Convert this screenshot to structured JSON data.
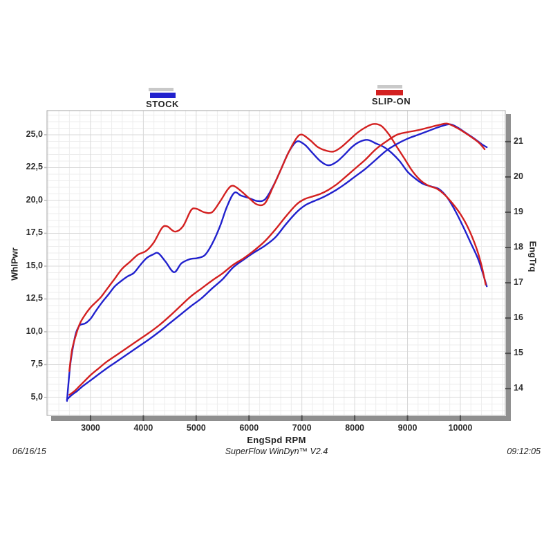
{
  "legend": {
    "stock": {
      "label": "STOCK",
      "color": "#2121cd",
      "shadow_color": "#c9c9c9"
    },
    "slip_on": {
      "label": "SLIP-ON",
      "color": "#d32020",
      "shadow_color": "#c9c9c9"
    }
  },
  "axis_titles": {
    "left": "WhlPwr",
    "right": "EngTrq",
    "bottom": "EngSpd  RPM"
  },
  "footer": {
    "date": "06/16/15",
    "center": "SuperFlow WinDyn™ V2.4",
    "time": "09:12:05"
  },
  "colors": {
    "grid_minor": "#ededed",
    "grid_major": "#d8d8d8",
    "plot_border": "#a6a6a6",
    "plot_shadow": "#8f8f8f",
    "tick_dark": "#4d4d4d",
    "tick_light": "#b8b8b8"
  },
  "chart_data": {
    "type": "line",
    "title": "",
    "grid": true,
    "legend_position": "top",
    "xlabel": "EngSpd  RPM",
    "x_axis": {
      "min": 2176,
      "max": 10851,
      "minor_step": 200,
      "major_ticks": [
        {
          "value": 3000,
          "label": "3000"
        },
        {
          "value": 4000,
          "label": "4000"
        },
        {
          "value": 5000,
          "label": "5000"
        },
        {
          "value": 6000,
          "label": "6000"
        },
        {
          "value": 7000,
          "label": "7000"
        },
        {
          "value": 8000,
          "label": "8000"
        },
        {
          "value": 9000,
          "label": "9000"
        },
        {
          "value": 10000,
          "label": "10000"
        }
      ]
    },
    "left_axis": {
      "label": "WhlPwr",
      "min": 3.63,
      "max": 26.84,
      "minor_step": 0.5,
      "ticks": [
        {
          "value": 25.0,
          "label": "25,0"
        },
        {
          "value": 22.5,
          "label": "22,5"
        },
        {
          "value": 20.0,
          "label": "20,0"
        },
        {
          "value": 17.5,
          "label": "17,5"
        },
        {
          "value": 15.0,
          "label": "15,0"
        },
        {
          "value": 12.5,
          "label": "12,5"
        },
        {
          "value": 10.0,
          "label": "10,0"
        },
        {
          "value": 7.5,
          "label": "7,5"
        },
        {
          "value": 5.0,
          "label": "5,0"
        }
      ]
    },
    "right_axis": {
      "label": "EngTrq",
      "min": 13.24,
      "max": 21.88,
      "ticks": [
        {
          "value": 21,
          "label": "21"
        },
        {
          "value": 20,
          "label": "20"
        },
        {
          "value": 19,
          "label": "19"
        },
        {
          "value": 18,
          "label": "18"
        },
        {
          "value": 17,
          "label": "17"
        },
        {
          "value": 16,
          "label": "16"
        },
        {
          "value": 15,
          "label": "15"
        },
        {
          "value": 14,
          "label": "14"
        }
      ]
    },
    "series": [
      {
        "name": "STOCK EngTrq",
        "run": "STOCK",
        "axis": "right",
        "color": "#2121cd",
        "points": [
          [
            2554,
            13.65
          ],
          [
            2610,
            14.6
          ],
          [
            2670,
            15.2
          ],
          [
            2730,
            15.6
          ],
          [
            2800,
            15.8
          ],
          [
            2900,
            15.85
          ],
          [
            3000,
            15.98
          ],
          [
            3100,
            16.2
          ],
          [
            3220,
            16.45
          ],
          [
            3340,
            16.67
          ],
          [
            3460,
            16.9
          ],
          [
            3580,
            17.05
          ],
          [
            3700,
            17.18
          ],
          [
            3820,
            17.28
          ],
          [
            3940,
            17.5
          ],
          [
            4060,
            17.7
          ],
          [
            4180,
            17.8
          ],
          [
            4280,
            17.84
          ],
          [
            4420,
            17.6
          ],
          [
            4580,
            17.3
          ],
          [
            4720,
            17.55
          ],
          [
            4880,
            17.67
          ],
          [
            5020,
            17.7
          ],
          [
            5160,
            17.78
          ],
          [
            5300,
            18.1
          ],
          [
            5450,
            18.6
          ],
          [
            5580,
            19.15
          ],
          [
            5720,
            19.55
          ],
          [
            5850,
            19.47
          ],
          [
            6000,
            19.4
          ],
          [
            6150,
            19.32
          ],
          [
            6300,
            19.36
          ],
          [
            6450,
            19.72
          ],
          [
            6600,
            20.2
          ],
          [
            6750,
            20.7
          ],
          [
            6900,
            21.0
          ],
          [
            7050,
            20.92
          ],
          [
            7200,
            20.68
          ],
          [
            7350,
            20.45
          ],
          [
            7500,
            20.33
          ],
          [
            7650,
            20.42
          ],
          [
            7800,
            20.62
          ],
          [
            7950,
            20.85
          ],
          [
            8100,
            21.0
          ],
          [
            8250,
            21.05
          ],
          [
            8400,
            20.95
          ],
          [
            8550,
            20.85
          ],
          [
            8700,
            20.68
          ],
          [
            8850,
            20.45
          ],
          [
            9000,
            20.15
          ],
          [
            9150,
            19.95
          ],
          [
            9300,
            19.8
          ],
          [
            9450,
            19.73
          ],
          [
            9600,
            19.65
          ],
          [
            9750,
            19.42
          ],
          [
            9900,
            19.05
          ],
          [
            10050,
            18.6
          ],
          [
            10200,
            18.12
          ],
          [
            10350,
            17.62
          ],
          [
            10500,
            16.9
          ]
        ]
      },
      {
        "name": "SLIP-ON EngTrq",
        "run": "SLIP-ON",
        "axis": "right",
        "color": "#d32020",
        "points": [
          [
            2598,
            14.5
          ],
          [
            2650,
            15.1
          ],
          [
            2720,
            15.5
          ],
          [
            2800,
            15.85
          ],
          [
            2900,
            16.1
          ],
          [
            3000,
            16.3
          ],
          [
            3100,
            16.45
          ],
          [
            3200,
            16.6
          ],
          [
            3300,
            16.8
          ],
          [
            3450,
            17.1
          ],
          [
            3600,
            17.4
          ],
          [
            3750,
            17.6
          ],
          [
            3900,
            17.8
          ],
          [
            4050,
            17.9
          ],
          [
            4200,
            18.15
          ],
          [
            4350,
            18.55
          ],
          [
            4450,
            18.6
          ],
          [
            4600,
            18.45
          ],
          [
            4750,
            18.6
          ],
          [
            4900,
            19.05
          ],
          [
            5000,
            19.1
          ],
          [
            5150,
            19.0
          ],
          [
            5300,
            19.0
          ],
          [
            5450,
            19.3
          ],
          [
            5600,
            19.65
          ],
          [
            5700,
            19.75
          ],
          [
            5850,
            19.6
          ],
          [
            6000,
            19.4
          ],
          [
            6150,
            19.22
          ],
          [
            6300,
            19.25
          ],
          [
            6450,
            19.7
          ],
          [
            6600,
            20.2
          ],
          [
            6750,
            20.7
          ],
          [
            6900,
            21.1
          ],
          [
            7000,
            21.2
          ],
          [
            7150,
            21.05
          ],
          [
            7300,
            20.85
          ],
          [
            7450,
            20.75
          ],
          [
            7600,
            20.72
          ],
          [
            7750,
            20.85
          ],
          [
            7900,
            21.05
          ],
          [
            8050,
            21.25
          ],
          [
            8200,
            21.4
          ],
          [
            8350,
            21.5
          ],
          [
            8500,
            21.45
          ],
          [
            8650,
            21.2
          ],
          [
            8800,
            20.85
          ],
          [
            8950,
            20.5
          ],
          [
            9100,
            20.15
          ],
          [
            9250,
            19.9
          ],
          [
            9400,
            19.75
          ],
          [
            9550,
            19.67
          ],
          [
            9700,
            19.5
          ],
          [
            9850,
            19.25
          ],
          [
            10000,
            18.95
          ],
          [
            10150,
            18.55
          ],
          [
            10300,
            18.0
          ],
          [
            10400,
            17.5
          ],
          [
            10480,
            16.95
          ]
        ]
      },
      {
        "name": "STOCK WhlPwr",
        "run": "STOCK",
        "axis": "left",
        "color": "#2121cd",
        "points": [
          [
            2554,
            4.85
          ],
          [
            2650,
            5.2
          ],
          [
            2750,
            5.5
          ],
          [
            2850,
            5.85
          ],
          [
            3000,
            6.3
          ],
          [
            3150,
            6.75
          ],
          [
            3300,
            7.2
          ],
          [
            3500,
            7.75
          ],
          [
            3700,
            8.3
          ],
          [
            3900,
            8.85
          ],
          [
            4100,
            9.4
          ],
          [
            4300,
            10.0
          ],
          [
            4500,
            10.65
          ],
          [
            4700,
            11.3
          ],
          [
            4900,
            11.95
          ],
          [
            5100,
            12.55
          ],
          [
            5300,
            13.3
          ],
          [
            5500,
            14.0
          ],
          [
            5700,
            14.9
          ],
          [
            5900,
            15.5
          ],
          [
            6100,
            16.05
          ],
          [
            6300,
            16.55
          ],
          [
            6500,
            17.2
          ],
          [
            6700,
            18.2
          ],
          [
            6900,
            19.1
          ],
          [
            7050,
            19.6
          ],
          [
            7200,
            19.9
          ],
          [
            7350,
            20.15
          ],
          [
            7500,
            20.45
          ],
          [
            7650,
            20.8
          ],
          [
            7800,
            21.2
          ],
          [
            8000,
            21.8
          ],
          [
            8200,
            22.4
          ],
          [
            8400,
            23.1
          ],
          [
            8600,
            23.8
          ],
          [
            8800,
            24.3
          ],
          [
            9000,
            24.7
          ],
          [
            9200,
            25.0
          ],
          [
            9400,
            25.3
          ],
          [
            9600,
            25.6
          ],
          [
            9800,
            25.8
          ],
          [
            9950,
            25.55
          ],
          [
            10100,
            25.15
          ],
          [
            10250,
            24.75
          ],
          [
            10400,
            24.3
          ],
          [
            10500,
            24.05
          ]
        ]
      },
      {
        "name": "SLIP-ON WhlPwr",
        "run": "SLIP-ON",
        "axis": "left",
        "color": "#d32020",
        "points": [
          [
            2600,
            5.2
          ],
          [
            2700,
            5.5
          ],
          [
            2800,
            5.9
          ],
          [
            2900,
            6.3
          ],
          [
            3000,
            6.7
          ],
          [
            3150,
            7.2
          ],
          [
            3300,
            7.7
          ],
          [
            3500,
            8.25
          ],
          [
            3700,
            8.8
          ],
          [
            3900,
            9.35
          ],
          [
            4100,
            9.9
          ],
          [
            4300,
            10.5
          ],
          [
            4500,
            11.2
          ],
          [
            4700,
            11.95
          ],
          [
            4900,
            12.7
          ],
          [
            5100,
            13.3
          ],
          [
            5300,
            13.9
          ],
          [
            5500,
            14.45
          ],
          [
            5700,
            15.1
          ],
          [
            5900,
            15.6
          ],
          [
            6100,
            16.2
          ],
          [
            6300,
            16.9
          ],
          [
            6500,
            17.8
          ],
          [
            6700,
            18.8
          ],
          [
            6900,
            19.7
          ],
          [
            7050,
            20.1
          ],
          [
            7200,
            20.3
          ],
          [
            7350,
            20.5
          ],
          [
            7500,
            20.8
          ],
          [
            7650,
            21.2
          ],
          [
            7800,
            21.7
          ],
          [
            8000,
            22.4
          ],
          [
            8200,
            23.1
          ],
          [
            8400,
            23.9
          ],
          [
            8600,
            24.5
          ],
          [
            8800,
            25.0
          ],
          [
            9000,
            25.2
          ],
          [
            9200,
            25.35
          ],
          [
            9400,
            25.55
          ],
          [
            9600,
            25.75
          ],
          [
            9750,
            25.85
          ],
          [
            9900,
            25.6
          ],
          [
            10050,
            25.25
          ],
          [
            10200,
            24.85
          ],
          [
            10350,
            24.4
          ],
          [
            10460,
            23.9
          ]
        ]
      }
    ]
  }
}
